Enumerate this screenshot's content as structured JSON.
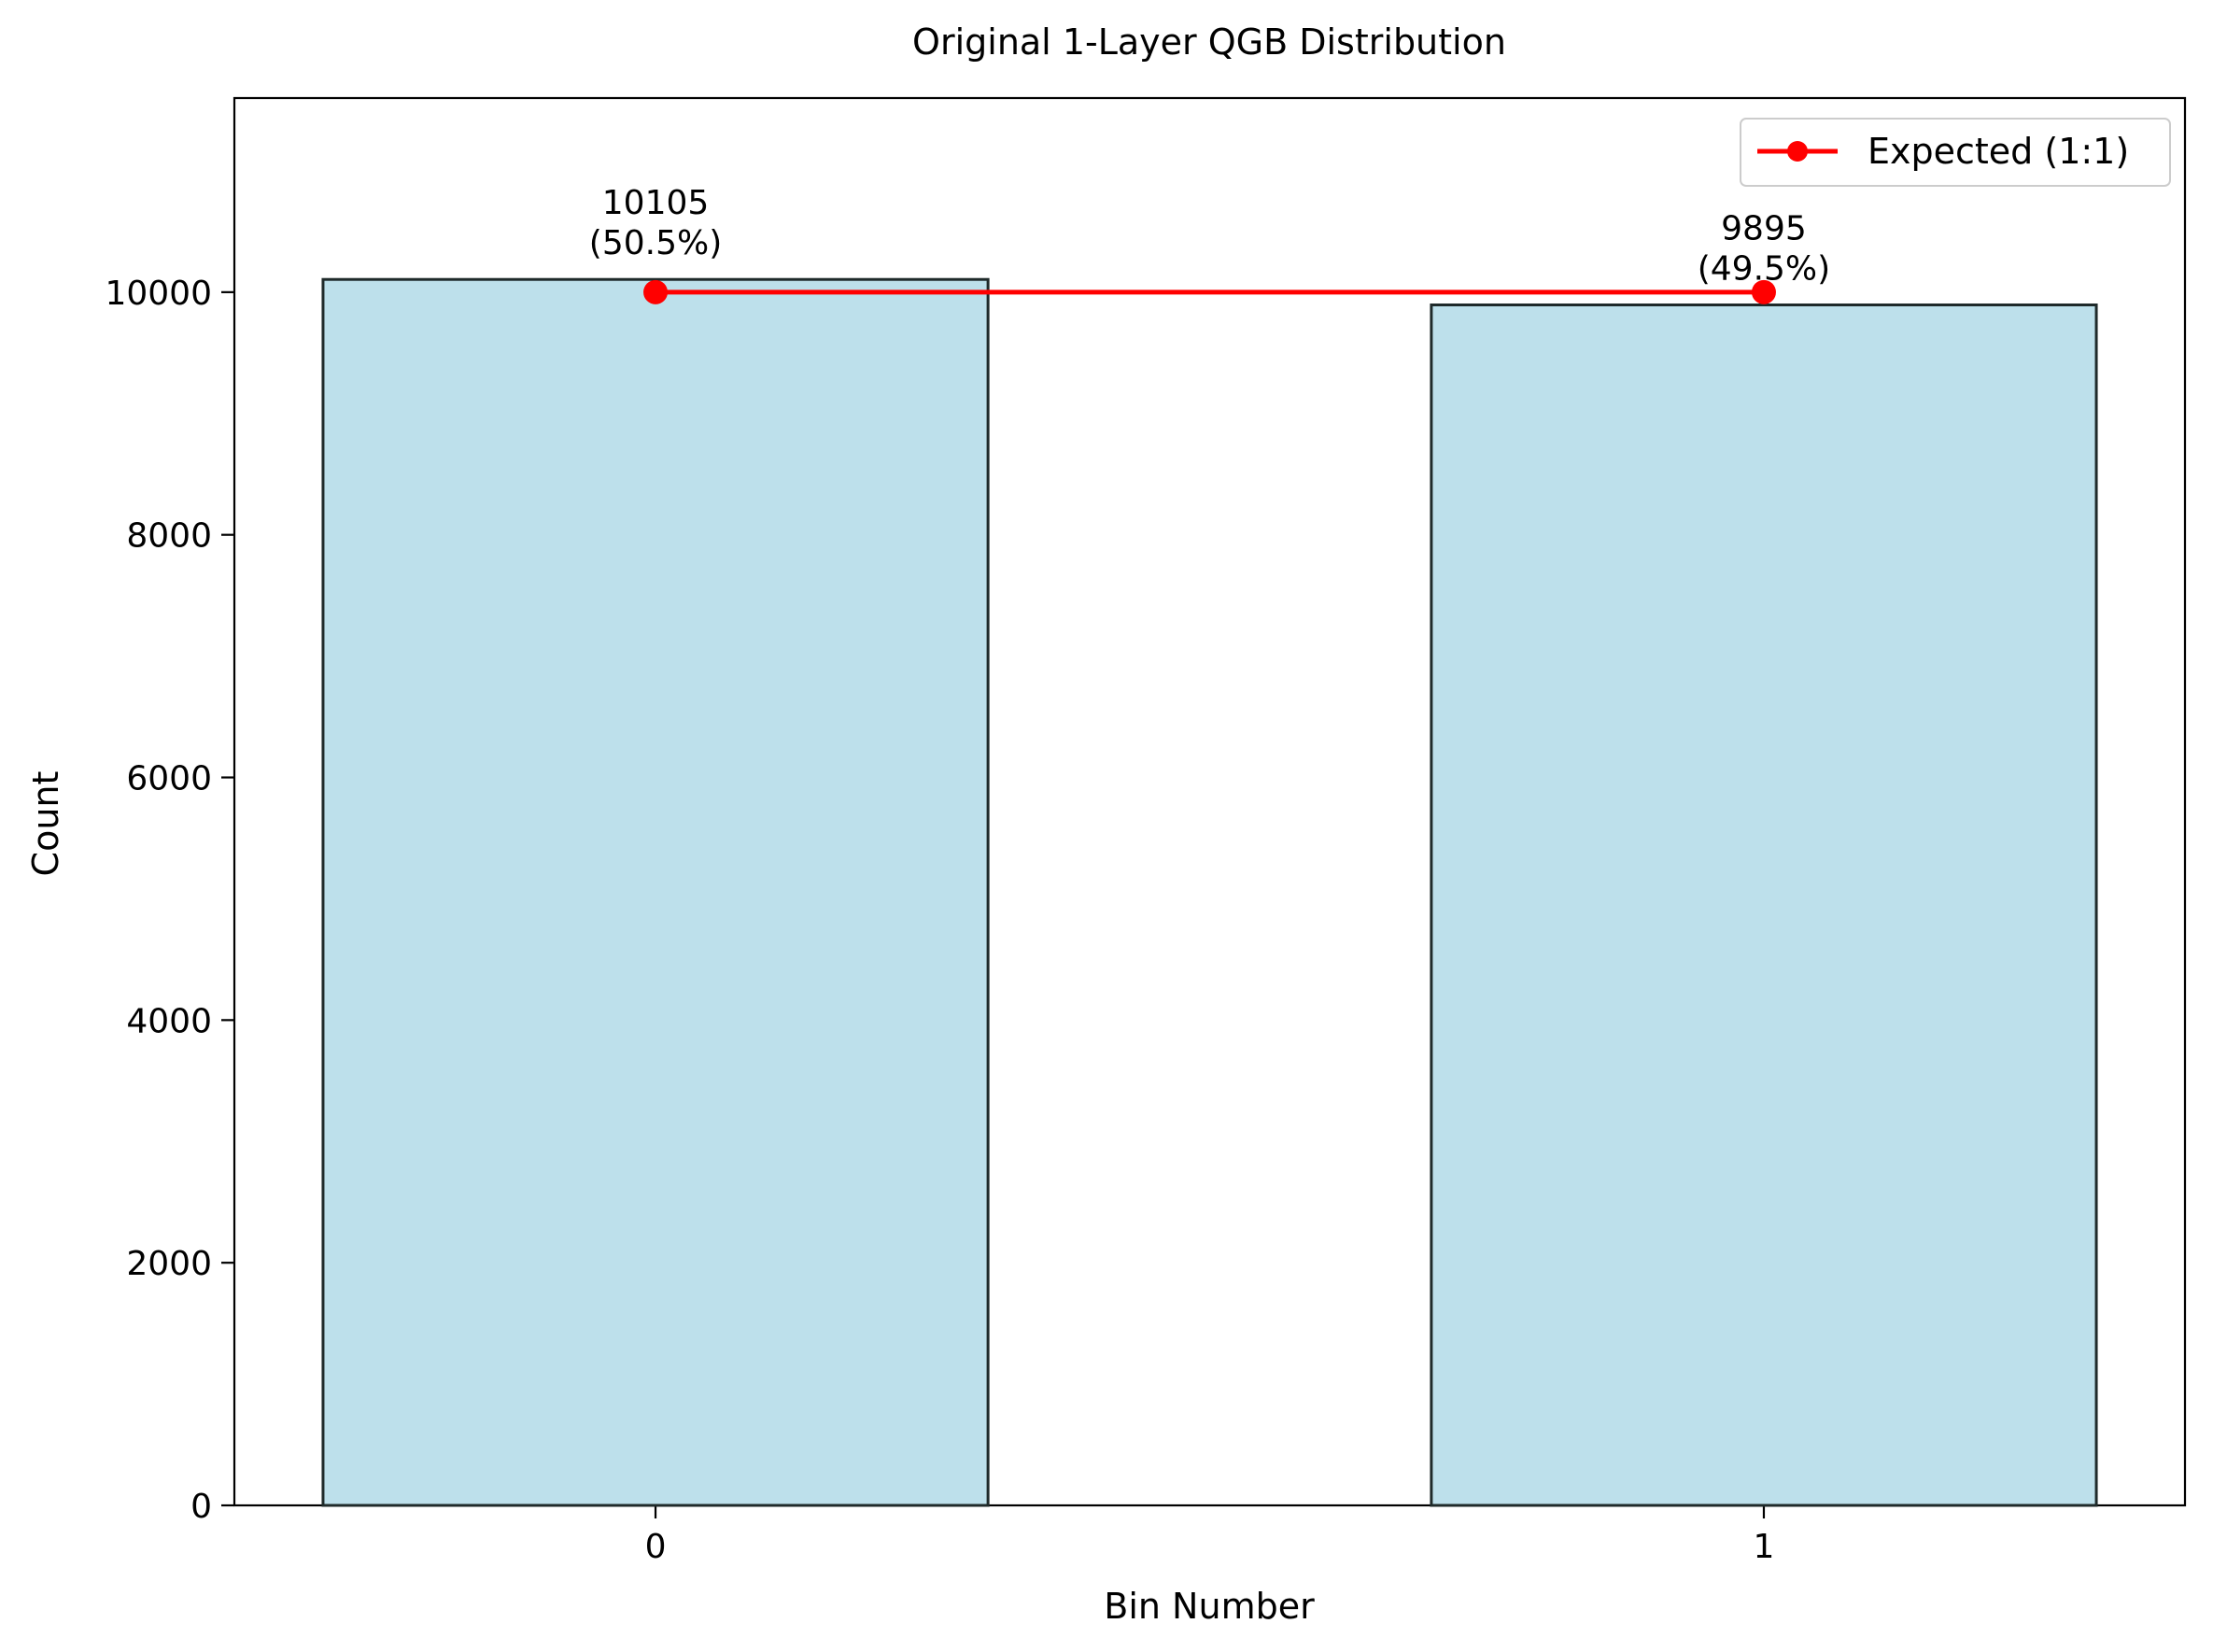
{
  "chart_data": {
    "type": "bar",
    "title": "Original 1-Layer QGB Distribution",
    "xlabel": "Bin Number",
    "ylabel": "Count",
    "categories": [
      "0",
      "1"
    ],
    "x": [
      0,
      1
    ],
    "ylim": [
      0,
      11600
    ],
    "yticks": [
      0,
      2000,
      4000,
      6000,
      8000,
      10000
    ],
    "ytick_labels": [
      "0",
      "2000",
      "4000",
      "6000",
      "8000",
      "10000"
    ],
    "xtick_labels": [
      "0",
      "1"
    ],
    "grid": false,
    "series": [
      {
        "kind": "bar",
        "values": [
          10105,
          9895
        ],
        "bar_labels": [
          [
            "10105",
            "(50.5%)"
          ],
          [
            "9895",
            "(49.5%)"
          ]
        ],
        "color": "#add8e6",
        "edgecolor": "#1f2a2a"
      },
      {
        "kind": "line",
        "name": "Expected (1:1)",
        "values": [
          10000,
          10000
        ],
        "color": "#ff0000",
        "marker": "circle"
      }
    ],
    "legend": {
      "placement": "top-right",
      "entries": [
        "Expected (1:1)"
      ]
    }
  }
}
